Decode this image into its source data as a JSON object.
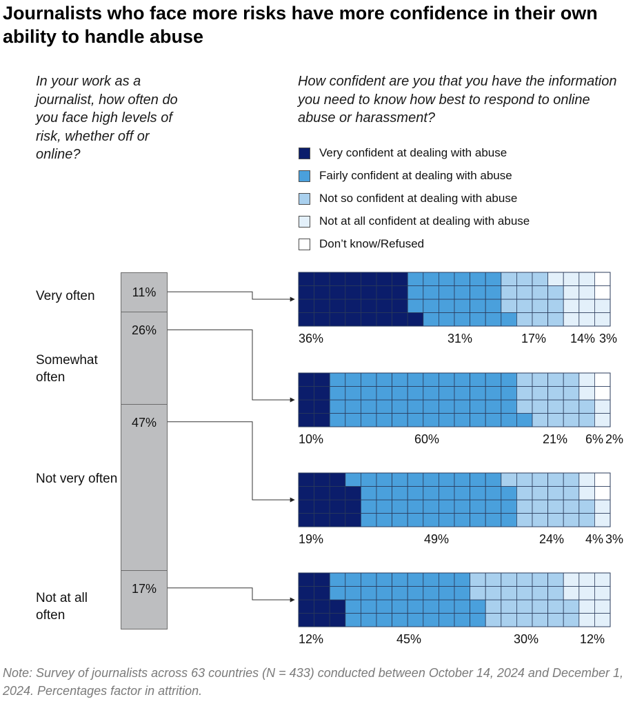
{
  "title": "Journalists who face more risks have more confidence in their own ability to handle abuse",
  "left_question": "In your work as a journalist, how often do you face high levels of risk, whether off or online?",
  "right_question": "How confident are you that you have the information you need to know how best to respond to online abuse or harassment?",
  "note": "Note: Survey of journalists across 63 countries (N = 433) conducted between October 14, 2024 and December 1, 2024. Percentages factor in attrition.",
  "legend": [
    {
      "label": "Very confident at dealing with abuse",
      "color": "#0b1d6b"
    },
    {
      "label": "Fairly confident at dealing with abuse",
      "color": "#4aa0dc"
    },
    {
      "label": "Not so confident at dealing with abuse",
      "color": "#a9d0ee"
    },
    {
      "label": "Not at all confident at dealing with abuse",
      "color": "#e3f0fa"
    },
    {
      "label": "Don’t know/Refused",
      "color": "#ffffff"
    }
  ],
  "chart_data": [
    {
      "type": "bar",
      "categories": [
        "Very often",
        "Somewhat often",
        "Not very often",
        "Not at all often"
      ],
      "values": [
        11,
        26,
        47,
        17
      ],
      "value_labels": [
        "11%",
        "26%",
        "47%",
        "17%"
      ],
      "title": "In your work as a journalist, how often do you face high levels of risk, whether off or online?"
    },
    {
      "type": "bar",
      "categories": [
        "Very often",
        "Somewhat often",
        "Not very often",
        "Not at all often"
      ],
      "series": [
        {
          "name": "Very confident at dealing with abuse",
          "values": [
            36,
            10,
            19,
            12
          ],
          "labels": [
            "36%",
            "10%",
            "19%",
            "12%"
          ]
        },
        {
          "name": "Fairly confident at dealing with abuse",
          "values": [
            31,
            60,
            49,
            45
          ],
          "labels": [
            "31%",
            "60%",
            "49%",
            "45%"
          ]
        },
        {
          "name": "Not so confident at dealing with abuse",
          "values": [
            17,
            21,
            24,
            30
          ],
          "labels": [
            "17%",
            "21%",
            "24%",
            "30%"
          ]
        },
        {
          "name": "Not at all confident at dealing with abuse",
          "values": [
            14,
            6,
            4,
            12
          ],
          "labels": [
            "14%",
            "6%",
            "4%",
            "12%"
          ]
        },
        {
          "name": "Don’t know/Refused",
          "values": [
            3,
            2,
            3,
            0
          ],
          "labels": [
            "3%",
            "2%",
            "3%",
            ""
          ]
        }
      ],
      "title": "How confident are you that you have the information you need to know how best to respond to online abuse or harassment?"
    }
  ]
}
